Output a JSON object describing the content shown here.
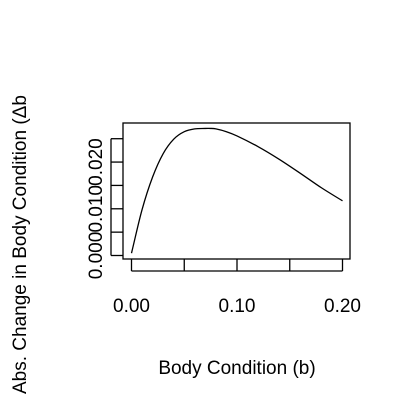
{
  "chart_data": {
    "type": "line",
    "title": "",
    "xlabel": "Body Condition (b)",
    "ylabel": "Abs. Change in Body Condition (Δb",
    "xlim": [
      0.0,
      0.2
    ],
    "ylim": [
      0.0,
      0.0274
    ],
    "x_ticks": [
      0.0,
      0.05,
      0.1,
      0.15,
      0.2
    ],
    "x_tick_labels": [
      "0.00",
      "",
      "0.10",
      "",
      "0.20"
    ],
    "y_ticks": [
      0.0,
      0.005,
      0.01,
      0.015,
      0.02,
      0.025
    ],
    "y_tick_labels": [
      "0.000",
      "",
      "0.010",
      "",
      "0.020",
      ""
    ],
    "grid": false,
    "series": [
      {
        "x": [
          0.0,
          0.01,
          0.02,
          0.03,
          0.04,
          0.05,
          0.06,
          0.07,
          0.075,
          0.08,
          0.09,
          0.1,
          0.12,
          0.14,
          0.16,
          0.18,
          0.2
        ],
        "values": [
          0.0005,
          0.0098,
          0.0168,
          0.0218,
          0.0249,
          0.0265,
          0.0271,
          0.0272,
          0.0272,
          0.0271,
          0.0265,
          0.0256,
          0.0233,
          0.0206,
          0.0176,
          0.0145,
          0.0117
        ],
        "color": "#000000"
      }
    ]
  }
}
